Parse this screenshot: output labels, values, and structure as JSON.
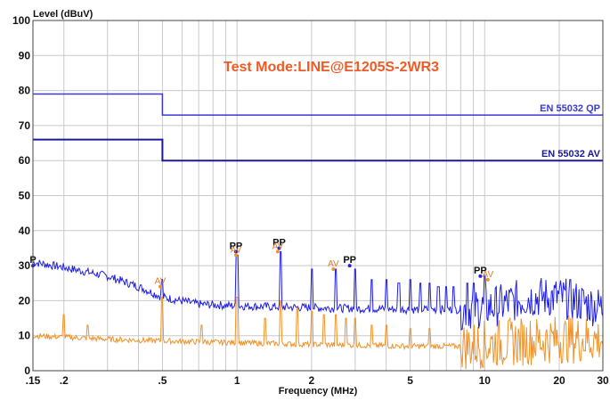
{
  "chart_data": {
    "type": "line",
    "title": "Test Mode:LINE@E1205S-2WR3",
    "ylabel": "Level (dBuV)",
    "xlabel": "Frequency (MHz)",
    "x_scale": "log",
    "xlim": [
      0.15,
      30
    ],
    "ylim": [
      0,
      100
    ],
    "grid": true,
    "x_ticks": [
      {
        "value": 0.15,
        "label": ".15"
      },
      {
        "value": 0.2,
        "label": ".2"
      },
      {
        "value": 0.5,
        "label": ".5"
      },
      {
        "value": 1,
        "label": "1"
      },
      {
        "value": 2,
        "label": "2"
      },
      {
        "value": 5,
        "label": "5"
      },
      {
        "value": 10,
        "label": "10"
      },
      {
        "value": 20,
        "label": "20"
      },
      {
        "value": 30,
        "label": "30"
      }
    ],
    "y_ticks": [
      0,
      10,
      20,
      30,
      40,
      50,
      60,
      70,
      80,
      90,
      100
    ],
    "colors": {
      "limit_qp": "#3a3ad0",
      "limit_av": "#1a1a9a",
      "peak_trace": "#1f1fe6",
      "avg_trace": "#f0922a",
      "title": "#f15a24",
      "marker_pp": "#111111",
      "marker_av": "#e07a30"
    },
    "series": [
      {
        "name": "EN 55032 QP",
        "kind": "limit",
        "x": [
          0.15,
          0.5,
          0.5,
          30
        ],
        "y": [
          79,
          79,
          73,
          73
        ]
      },
      {
        "name": "EN 55032 AV",
        "kind": "limit",
        "x": [
          0.15,
          0.5,
          0.5,
          30
        ],
        "y": [
          66,
          66,
          60,
          60
        ]
      },
      {
        "kind": "peak",
        "baseline_x": [
          0.15,
          0.2,
          0.3,
          0.4,
          0.5,
          0.7,
          1,
          2,
          5,
          8,
          10,
          12,
          15,
          20,
          30
        ],
        "baseline_y": [
          31,
          29.5,
          27,
          24,
          21,
          19,
          18.5,
          18,
          17.5,
          17.5,
          18,
          19,
          21,
          21,
          18
        ],
        "spikes_x": [
          0.5,
          1,
          1.5,
          2,
          2.5,
          3,
          3.5,
          4,
          4.5,
          5,
          5.5,
          6,
          6.5,
          7,
          7.5,
          8.5,
          9,
          10
        ],
        "spikes_y": [
          26,
          33,
          34,
          29,
          29,
          29,
          26,
          26,
          25,
          26,
          25,
          25,
          24,
          24,
          24,
          25,
          25,
          27
        ]
      },
      {
        "kind": "average",
        "baseline_x": [
          0.15,
          0.3,
          0.5,
          1,
          2,
          5,
          8,
          10,
          12,
          15,
          20,
          30
        ],
        "baseline_y": [
          10,
          9,
          8.5,
          8,
          7.5,
          7,
          7,
          7.5,
          8,
          8.5,
          9,
          9
        ],
        "spikes_x": [
          0.2,
          0.25,
          0.5,
          0.72,
          1,
          1.3,
          1.5,
          1.75,
          2,
          2.25,
          2.5,
          2.75,
          3,
          3.5,
          4,
          5,
          6
        ],
        "spikes_y": [
          16,
          13,
          21,
          13,
          21,
          15,
          20,
          18,
          17,
          16,
          16,
          15,
          15,
          13,
          13,
          12,
          12
        ]
      }
    ],
    "markers": [
      {
        "label": "P",
        "x": 0.15,
        "y": 30,
        "kind": "peak"
      },
      {
        "label": "PP",
        "x": 0.99,
        "y": 34,
        "kind": "peak"
      },
      {
        "label": "PP",
        "x": 1.48,
        "y": 35,
        "kind": "peak"
      },
      {
        "label": "PP",
        "x": 2.85,
        "y": 30,
        "kind": "peak"
      },
      {
        "label": "PP",
        "x": 9.6,
        "y": 27,
        "kind": "peak"
      },
      {
        "label": "AV",
        "x": 0.99,
        "y": 33,
        "kind": "avg"
      },
      {
        "label": "AV",
        "x": 1.46,
        "y": 34,
        "kind": "avg"
      },
      {
        "label": "AV",
        "x": 2.45,
        "y": 29,
        "kind": "avg"
      },
      {
        "label": "AV",
        "x": 0.49,
        "y": 24,
        "kind": "avg"
      },
      {
        "label": "AV",
        "x": 10.3,
        "y": 26,
        "kind": "avg"
      }
    ]
  }
}
